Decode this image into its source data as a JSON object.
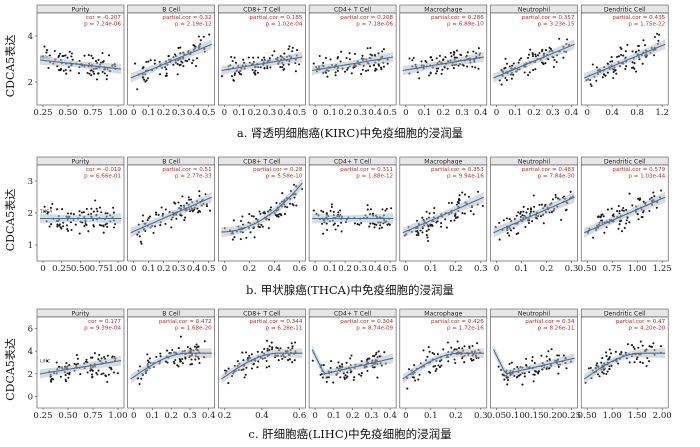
{
  "figure": {
    "ylabel": "CDCA5表达",
    "panel_headers": [
      "Purity",
      "B Cell",
      "CD8+ T Cell",
      "CD4+ T Cell",
      "Macrophage",
      "Neutrophil",
      "Dendritic Cell"
    ]
  },
  "chart_data": [
    {
      "id": "KIRC",
      "type": "scatter",
      "caption": "a.  肾透明细胞癌(KIRC)中免疫细胞的浸润量",
      "ylabel": "CDCA5表达",
      "row_tag": "KIRC",
      "yticks": [
        "2",
        "4"
      ],
      "panels": [
        {
          "title": "Purity",
          "cor": "cor = -0.207",
          "p": "p = 7.24e-06",
          "xticks": [
            "0.25",
            "0.50",
            "0.75",
            "1.00"
          ],
          "trend": "slight-negative"
        },
        {
          "title": "B Cell",
          "cor": "partial.cor = 0.32",
          "p": "p = 2.19e-12",
          "xticks": [
            "0",
            "0.1",
            "0.2",
            "0.3",
            "0.4",
            "0.5"
          ],
          "trend": "positive"
        },
        {
          "title": "CD8+ T Cell",
          "cor": "partial.cor = 0.185",
          "p": "p = 1.02e-04",
          "xticks": [
            "0",
            "0.1",
            "0.2",
            "0.3",
            "0.4",
            "0.5"
          ],
          "trend": "slight-positive"
        },
        {
          "title": "CD4+ T Cell",
          "cor": "partial.cor = 0.208",
          "p": "p = 7.18e-06",
          "xticks": [
            "0",
            "0.1",
            "0.2",
            "0.3",
            "0.4",
            "0.5"
          ],
          "trend": "slight-positive"
        },
        {
          "title": "Macrophage",
          "cor": "partial.cor = 0.286",
          "p": "p = 6.89e-10",
          "xticks": [
            "0",
            "0.1",
            "0.2",
            "0.3",
            "0.4"
          ],
          "trend": "slight-positive"
        },
        {
          "title": "Neutrophil",
          "cor": "partial.cor = 0.357",
          "p": "p = 3.23e-15",
          "xticks": [
            "0",
            "0.1",
            "0.2",
            "0.3",
            "0.4"
          ],
          "trend": "positive"
        },
        {
          "title": "Dendritic Cell",
          "cor": "partial.cor = 0.435",
          "p": "p = 1.75e-22",
          "xticks": [
            "0",
            "0.4",
            "0.8",
            "1.2"
          ],
          "trend": "positive"
        }
      ]
    },
    {
      "id": "THCA",
      "type": "scatter",
      "caption": "b.  甲状腺癌(THCA)中免疫细胞的浸润量",
      "ylabel": "CDCA5表达",
      "row_tag": "THCA",
      "yticks": [
        "1",
        "2",
        "3"
      ],
      "panels": [
        {
          "title": "Purity",
          "cor": "cor = -0.019",
          "p": "p = 6.66e-01",
          "xticks": [
            "0",
            "0.25",
            "0.50",
            "0.75",
            "1.00"
          ],
          "trend": "flat"
        },
        {
          "title": "B Cell",
          "cor": "partial.cor = 0.51",
          "p": "p = 2.77e-33",
          "xticks": [
            "0",
            "0.1",
            "0.2",
            "0.3",
            "0.4",
            "0.5"
          ],
          "trend": "positive"
        },
        {
          "title": "CD8+ T Cell",
          "cor": "partial.cor = 0.28",
          "p": "p = 5.58e-10",
          "xticks": [
            "0",
            "0.2",
            "0.4",
            "0.6"
          ],
          "trend": "steep-positive"
        },
        {
          "title": "CD4+ T Cell",
          "cor": "partial.cor = 0.311",
          "p": "p = 1.88e-12",
          "xticks": [
            "0",
            "0.1",
            "0.2",
            "0.3",
            "0.4",
            "0.5"
          ],
          "trend": "flat"
        },
        {
          "title": "Macrophage",
          "cor": "partial.cor = 0.353",
          "p": "p = 9.94e-16",
          "xticks": [
            "0",
            "0.1",
            "0.2",
            "0.3"
          ],
          "trend": "positive"
        },
        {
          "title": "Neutrophil",
          "cor": "partial.cor = 0.483",
          "p": "p = 7.84e-30",
          "xticks": [
            "0",
            "0.1",
            "0.2",
            "0.3"
          ],
          "trend": "positive"
        },
        {
          "title": "Dendritic Cell",
          "cor": "partial.cor = 0.579",
          "p": "p = 1.03e-44",
          "xticks": [
            "0.50",
            "0.75",
            "1.00",
            "1.25"
          ],
          "trend": "positive"
        }
      ]
    },
    {
      "id": "LIHC",
      "type": "scatter",
      "caption": "c.  肝细胞癌(LIHC)中免疫细胞的浸润量",
      "ylabel": "CDCA5表达",
      "row_tag": "LIHC",
      "yticks": [
        "0",
        "2",
        "4",
        "6"
      ],
      "panels": [
        {
          "title": "Purity",
          "cor": "cor = 0.177",
          "p": "p = 9.39e-04",
          "xticks": [
            "0.25",
            "0.50",
            "0.75",
            "1.00"
          ],
          "trend": "slight-positive"
        },
        {
          "title": "B Cell",
          "cor": "partial.cor = 0.472",
          "p": "p = 1.68e-20",
          "xticks": [
            "0",
            "0.1",
            "0.2",
            "0.3",
            "0.4"
          ],
          "trend": "curve"
        },
        {
          "title": "CD8+ T Cell",
          "cor": "partial.cor = 0.344",
          "p": "p = 6.28e-11",
          "xticks": [
            "0.2",
            "0.4",
            "0.6"
          ],
          "trend": "curve"
        },
        {
          "title": "CD4+ T Cell",
          "cor": "partial.cor = 0.304",
          "p": "p = 8.74e-09",
          "xticks": [
            "0",
            "0.1",
            "0.2",
            "0.3",
            "0.4"
          ],
          "trend": "dip"
        },
        {
          "title": "Macrophage",
          "cor": "partial.cor = 0.426",
          "p": "p = 1.72e-16",
          "xticks": [
            "0",
            "0.1",
            "0.2",
            "0.3"
          ],
          "trend": "curve"
        },
        {
          "title": "Neutrophil",
          "cor": "partial.cor = 0.34",
          "p": "p = 8.26e-11",
          "xticks": [
            "0.05",
            "0.10",
            "0.15",
            "0.20",
            "0.25"
          ],
          "trend": "dip"
        },
        {
          "title": "Dendritic Cell",
          "cor": "partial.cor = 0.47",
          "p": "p = 4.20e-20",
          "xticks": [
            "0.50",
            "1.00",
            "1.50",
            "2.00"
          ],
          "trend": "curve"
        }
      ]
    }
  ]
}
